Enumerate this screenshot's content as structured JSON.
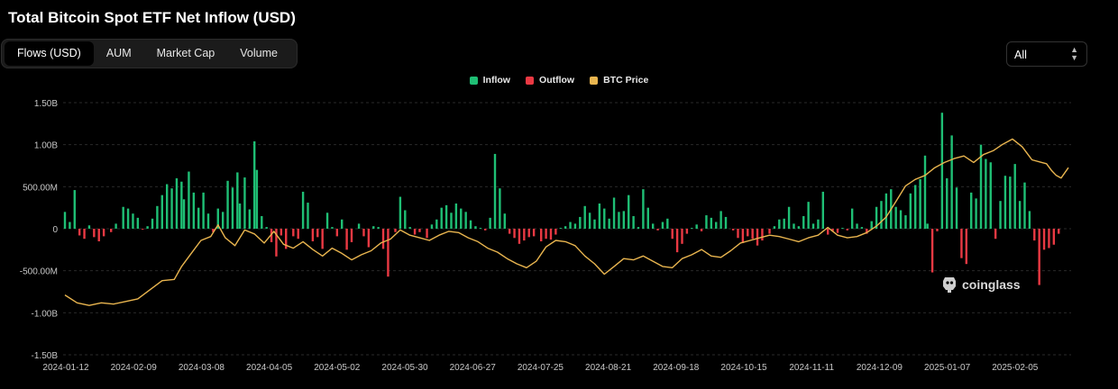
{
  "title": "Total Bitcoin Spot ETF Net Inflow (USD)",
  "tabs": [
    {
      "label": "Flows (USD)",
      "active": true
    },
    {
      "label": "AUM",
      "active": false
    },
    {
      "label": "Market Cap",
      "active": false
    },
    {
      "label": "Volume",
      "active": false
    }
  ],
  "range_select": {
    "value": "All"
  },
  "watermark": "coinglass",
  "colors": {
    "inflow": "#1fbf75",
    "outflow": "#ea3943",
    "btc_price": "#e9b54f",
    "grid": "#2a2a2a",
    "tick": "#c8c8c8"
  },
  "chart_data": {
    "type": "bar",
    "title": "Total Bitcoin Spot ETF Net Inflow (USD)",
    "legend": [
      "Inflow",
      "Outflow",
      "BTC Price"
    ],
    "legend_position": "top-center",
    "grid": true,
    "y_ticks": [
      "1.50B",
      "1.00B",
      "500.00M",
      "0",
      "-500.00M",
      "-1.00B",
      "-1.50B"
    ],
    "ylim": [
      -1500,
      1500
    ],
    "y_unit": "M USD",
    "x_ticks": [
      "2024-01-12",
      "2024-02-09",
      "2024-03-08",
      "2024-04-05",
      "2024-05-02",
      "2024-05-30",
      "2024-06-27",
      "2024-07-25",
      "2024-08-21",
      "2024-09-18",
      "2024-10-15",
      "2024-11-11",
      "2024-12-09",
      "2025-01-07",
      "2025-02-05"
    ],
    "x_range_days": [
      0,
      413
    ],
    "series": [
      {
        "name": "Net Flow",
        "note_days_since_2024-01-12": true,
        "points": [
          [
            0,
            200
          ],
          [
            2,
            80
          ],
          [
            4,
            460
          ],
          [
            6,
            -80
          ],
          [
            8,
            -120
          ],
          [
            10,
            40
          ],
          [
            12,
            -100
          ],
          [
            14,
            -150
          ],
          [
            16,
            -90
          ],
          [
            19,
            -40
          ],
          [
            21,
            60
          ],
          [
            24,
            260
          ],
          [
            26,
            240
          ],
          [
            28,
            180
          ],
          [
            30,
            130
          ],
          [
            32,
            -10
          ],
          [
            34,
            30
          ],
          [
            36,
            120
          ],
          [
            38,
            270
          ],
          [
            40,
            400
          ],
          [
            42,
            530
          ],
          [
            44,
            480
          ],
          [
            46,
            600
          ],
          [
            48,
            560
          ],
          [
            49,
            350
          ],
          [
            51,
            680
          ],
          [
            53,
            430
          ],
          [
            55,
            250
          ],
          [
            57,
            430
          ],
          [
            59,
            180
          ],
          [
            61,
            -40
          ],
          [
            63,
            240
          ],
          [
            65,
            200
          ],
          [
            67,
            570
          ],
          [
            69,
            490
          ],
          [
            71,
            670
          ],
          [
            72,
            300
          ],
          [
            74,
            610
          ],
          [
            76,
            230
          ],
          [
            78,
            1040
          ],
          [
            79,
            700
          ],
          [
            81,
            150
          ],
          [
            83,
            20
          ],
          [
            85,
            -160
          ],
          [
            87,
            -330
          ],
          [
            89,
            -80
          ],
          [
            91,
            -240
          ],
          [
            94,
            -90
          ],
          [
            96,
            -120
          ],
          [
            98,
            440
          ],
          [
            100,
            310
          ],
          [
            102,
            -150
          ],
          [
            104,
            -100
          ],
          [
            106,
            -240
          ],
          [
            108,
            190
          ],
          [
            110,
            20
          ],
          [
            112,
            -90
          ],
          [
            114,
            110
          ],
          [
            116,
            -250
          ],
          [
            118,
            -160
          ],
          [
            121,
            60
          ],
          [
            123,
            -90
          ],
          [
            125,
            -220
          ],
          [
            127,
            30
          ],
          [
            129,
            20
          ],
          [
            131,
            -240
          ],
          [
            133,
            -570
          ],
          [
            136,
            -40
          ],
          [
            138,
            380
          ],
          [
            140,
            220
          ],
          [
            142,
            20
          ],
          [
            144,
            -70
          ],
          [
            146,
            -40
          ],
          [
            149,
            -110
          ],
          [
            151,
            50
          ],
          [
            153,
            110
          ],
          [
            155,
            250
          ],
          [
            157,
            280
          ],
          [
            159,
            190
          ],
          [
            161,
            300
          ],
          [
            163,
            240
          ],
          [
            165,
            200
          ],
          [
            167,
            100
          ],
          [
            169,
            30
          ],
          [
            171,
            10
          ],
          [
            173,
            -20
          ],
          [
            175,
            130
          ],
          [
            177,
            890
          ],
          [
            179,
            480
          ],
          [
            181,
            180
          ],
          [
            183,
            -60
          ],
          [
            185,
            -110
          ],
          [
            187,
            -180
          ],
          [
            189,
            -140
          ],
          [
            191,
            -100
          ],
          [
            193,
            -90
          ],
          [
            196,
            -150
          ],
          [
            198,
            -120
          ],
          [
            200,
            -130
          ],
          [
            202,
            -70
          ],
          [
            204,
            10
          ],
          [
            206,
            30
          ],
          [
            208,
            80
          ],
          [
            210,
            60
          ],
          [
            212,
            140
          ],
          [
            214,
            270
          ],
          [
            216,
            190
          ],
          [
            218,
            110
          ],
          [
            220,
            300
          ],
          [
            222,
            240
          ],
          [
            224,
            120
          ],
          [
            226,
            370
          ],
          [
            228,
            200
          ],
          [
            230,
            210
          ],
          [
            232,
            400
          ],
          [
            234,
            150
          ],
          [
            236,
            20
          ],
          [
            238,
            470
          ],
          [
            240,
            250
          ],
          [
            242,
            60
          ],
          [
            244,
            -20
          ],
          [
            246,
            80
          ],
          [
            248,
            120
          ],
          [
            250,
            -120
          ],
          [
            252,
            -280
          ],
          [
            254,
            -180
          ],
          [
            256,
            -60
          ],
          [
            258,
            10
          ],
          [
            260,
            50
          ],
          [
            262,
            -30
          ],
          [
            264,
            160
          ],
          [
            266,
            130
          ],
          [
            268,
            80
          ],
          [
            270,
            210
          ],
          [
            272,
            140
          ],
          [
            275,
            -20
          ],
          [
            277,
            -110
          ],
          [
            279,
            -170
          ],
          [
            281,
            -90
          ],
          [
            283,
            -120
          ],
          [
            285,
            -200
          ],
          [
            287,
            -140
          ],
          [
            290,
            -60
          ],
          [
            292,
            30
          ],
          [
            294,
            110
          ],
          [
            296,
            120
          ],
          [
            298,
            260
          ],
          [
            300,
            60
          ],
          [
            302,
            30
          ],
          [
            304,
            150
          ],
          [
            306,
            320
          ],
          [
            308,
            60
          ],
          [
            310,
            110
          ],
          [
            312,
            440
          ],
          [
            314,
            -70
          ],
          [
            316,
            -30
          ],
          [
            318,
            -50
          ],
          [
            320,
            10
          ],
          [
            322,
            -20
          ],
          [
            324,
            240
          ],
          [
            326,
            60
          ],
          [
            328,
            20
          ],
          [
            330,
            -60
          ],
          [
            332,
            90
          ],
          [
            334,
            260
          ],
          [
            336,
            330
          ],
          [
            338,
            420
          ],
          [
            340,
            470
          ],
          [
            342,
            260
          ],
          [
            344,
            220
          ],
          [
            346,
            160
          ],
          [
            348,
            420
          ],
          [
            350,
            520
          ],
          [
            352,
            590
          ],
          [
            354,
            870
          ],
          [
            355,
            60
          ],
          [
            357,
            -520
          ],
          [
            359,
            -30
          ],
          [
            361,
            1380
          ],
          [
            363,
            600
          ],
          [
            365,
            1110
          ],
          [
            367,
            490
          ],
          [
            369,
            -350
          ],
          [
            371,
            -420
          ],
          [
            373,
            430
          ],
          [
            375,
            360
          ],
          [
            377,
            1000
          ],
          [
            379,
            830
          ],
          [
            381,
            790
          ],
          [
            383,
            -120
          ],
          [
            385,
            330
          ],
          [
            387,
            630
          ],
          [
            389,
            620
          ],
          [
            391,
            770
          ],
          [
            393,
            330
          ],
          [
            395,
            550
          ],
          [
            397,
            210
          ],
          [
            399,
            -140
          ],
          [
            401,
            -670
          ],
          [
            403,
            -250
          ],
          [
            405,
            -230
          ],
          [
            407,
            -190
          ],
          [
            409,
            -60
          ],
          [
            410,
            0
          ]
        ]
      },
      {
        "name": "BTC Price",
        "unit": "USD",
        "points": [
          [
            0,
            46000
          ],
          [
            5,
            43000
          ],
          [
            10,
            42000
          ],
          [
            15,
            43000
          ],
          [
            20,
            42500
          ],
          [
            25,
            43500
          ],
          [
            30,
            44500
          ],
          [
            35,
            48000
          ],
          [
            40,
            51500
          ],
          [
            45,
            52000
          ],
          [
            48,
            57000
          ],
          [
            52,
            62000
          ],
          [
            56,
            67000
          ],
          [
            60,
            68500
          ],
          [
            63,
            73000
          ],
          [
            66,
            68000
          ],
          [
            70,
            65000
          ],
          [
            74,
            71000
          ],
          [
            78,
            69500
          ],
          [
            82,
            66000
          ],
          [
            86,
            70500
          ],
          [
            90,
            65500
          ],
          [
            94,
            64000
          ],
          [
            98,
            66500
          ],
          [
            102,
            63500
          ],
          [
            106,
            61000
          ],
          [
            110,
            64000
          ],
          [
            114,
            62000
          ],
          [
            118,
            59500
          ],
          [
            122,
            61500
          ],
          [
            126,
            63000
          ],
          [
            130,
            66000
          ],
          [
            134,
            67500
          ],
          [
            138,
            71000
          ],
          [
            142,
            69000
          ],
          [
            146,
            68000
          ],
          [
            150,
            67000
          ],
          [
            154,
            69000
          ],
          [
            158,
            70500
          ],
          [
            162,
            70000
          ],
          [
            166,
            68000
          ],
          [
            170,
            66500
          ],
          [
            174,
            64000
          ],
          [
            178,
            62500
          ],
          [
            182,
            60000
          ],
          [
            186,
            58000
          ],
          [
            190,
            56500
          ],
          [
            194,
            59000
          ],
          [
            198,
            64500
          ],
          [
            202,
            67000
          ],
          [
            206,
            66500
          ],
          [
            210,
            65000
          ],
          [
            214,
            61000
          ],
          [
            218,
            58000
          ],
          [
            222,
            54000
          ],
          [
            226,
            57000
          ],
          [
            230,
            60000
          ],
          [
            234,
            59500
          ],
          [
            238,
            61000
          ],
          [
            242,
            59000
          ],
          [
            246,
            57000
          ],
          [
            250,
            56500
          ],
          [
            254,
            60000
          ],
          [
            258,
            61500
          ],
          [
            262,
            63500
          ],
          [
            266,
            61000
          ],
          [
            270,
            60500
          ],
          [
            274,
            63000
          ],
          [
            278,
            66000
          ],
          [
            282,
            67000
          ],
          [
            286,
            68000
          ],
          [
            290,
            69000
          ],
          [
            294,
            68500
          ],
          [
            298,
            67500
          ],
          [
            302,
            66500
          ],
          [
            306,
            68000
          ],
          [
            310,
            69000
          ],
          [
            314,
            72000
          ],
          [
            318,
            69000
          ],
          [
            322,
            68000
          ],
          [
            326,
            68500
          ],
          [
            330,
            70000
          ],
          [
            334,
            72500
          ],
          [
            338,
            76000
          ],
          [
            342,
            82000
          ],
          [
            346,
            88000
          ],
          [
            350,
            90500
          ],
          [
            354,
            92000
          ],
          [
            358,
            95000
          ],
          [
            362,
            97000
          ],
          [
            366,
            98500
          ],
          [
            370,
            99500
          ],
          [
            374,
            97000
          ],
          [
            378,
            100000
          ],
          [
            382,
            101500
          ],
          [
            386,
            104000
          ],
          [
            390,
            106000
          ],
          [
            394,
            103000
          ],
          [
            398,
            98000
          ],
          [
            402,
            97000
          ],
          [
            404,
            96500
          ],
          [
            406,
            94000
          ],
          [
            408,
            92000
          ],
          [
            410,
            91000
          ],
          [
            413,
            95000
          ]
        ]
      }
    ]
  }
}
